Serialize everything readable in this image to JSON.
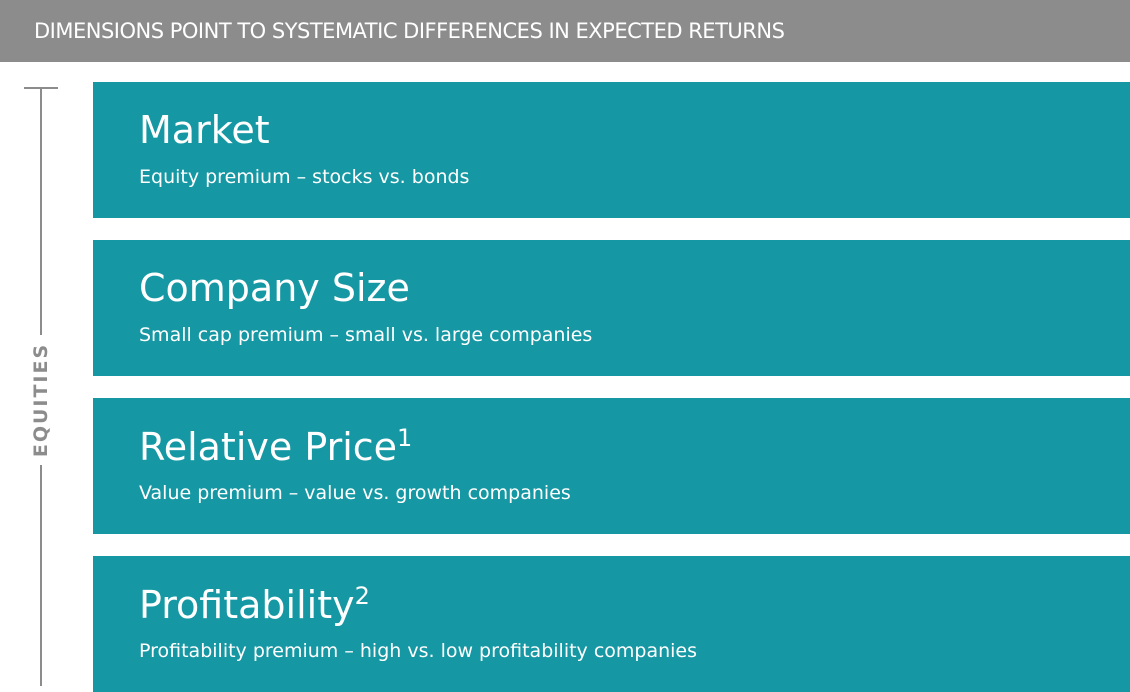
{
  "header": {
    "title": "DIMENSIONS POINT TO SYSTEMATIC DIFFERENCES IN EXPECTED RETURNS"
  },
  "side_label": "EQUITIES",
  "boxes": [
    {
      "title": "Market",
      "subtitle": "Equity premium – stocks vs. bonds"
    },
    {
      "title": "Company Size",
      "subtitle": "Small cap premium – small vs. large companies"
    },
    {
      "title": "Relative Price",
      "footnote": "1",
      "subtitle": "Value premium – value vs. growth companies"
    },
    {
      "title": "Profitability",
      "footnote": "2",
      "subtitle": "Profitability premium – high vs. low profitability companies"
    }
  ]
}
